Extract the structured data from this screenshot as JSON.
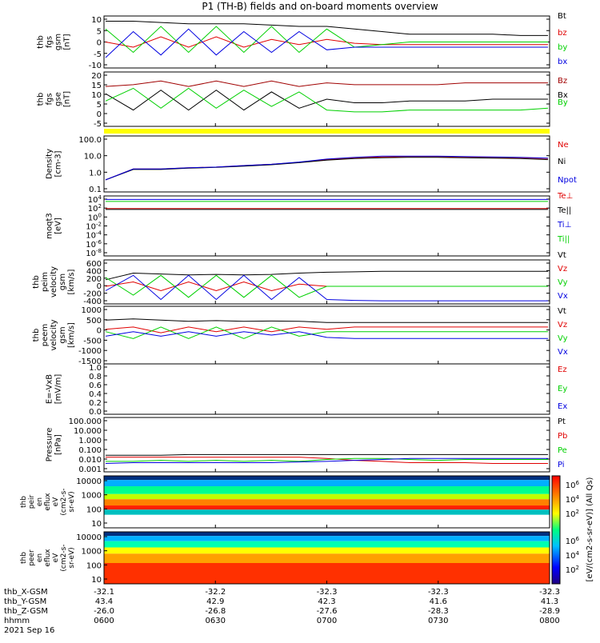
{
  "title": "P1  (TH-B) fields and on-board moments overview",
  "colors": {
    "black": "#000000",
    "red": "#e00000",
    "green": "#00d000",
    "blue": "#0000e0",
    "darkred": "#a00000",
    "yellow": "#ffff00"
  },
  "time_axis": {
    "tick_labels": [
      "0600",
      "0630",
      "0700",
      "0730",
      "0800"
    ],
    "date": "2021 Sep 16",
    "row_labels": [
      "thb_X-GSM",
      "thb_Y-GSM",
      "thb_Z-GSM",
      "hhmm"
    ],
    "rows": [
      [
        "-32.1",
        "-32.2",
        "-32.3",
        "-32.3",
        "-32.3"
      ],
      [
        "43.4",
        "42.9",
        "42.3",
        "41.6",
        "41.3"
      ],
      [
        "-26.0",
        "-26.8",
        "-27.6",
        "-28.3",
        "-28.9"
      ]
    ]
  },
  "colorbar": {
    "label": "[eV/(cm2-s-sr-eV)] (All Qs)",
    "ticks_top": [
      "10^6",
      "10^4",
      "10^2"
    ],
    "ticks_bottom": [
      "10^6",
      "10^4",
      "10^2"
    ]
  },
  "chart_data": [
    {
      "type": "line",
      "panel": "fgs_gsm",
      "ylabel": [
        "thb",
        "fgs",
        "gsm",
        "[nT]"
      ],
      "ylim": [
        -10,
        10
      ],
      "yticks": [
        "10",
        "5",
        "0",
        "-5",
        "-10"
      ],
      "series": [
        {
          "name": "Bt",
          "color": "black",
          "values": [
            8,
            8,
            7.5,
            7,
            7,
            7,
            6.5,
            6,
            6,
            5,
            4,
            3,
            3,
            3,
            3,
            2.5,
            2.5
          ]
        },
        {
          "name": "bz",
          "color": "red",
          "values": [
            0,
            -2,
            2,
            -2,
            2,
            -2,
            1,
            -1,
            1,
            -0.5,
            -1,
            -1,
            -1,
            -1,
            -1,
            -1,
            -1
          ]
        },
        {
          "name": "by",
          "color": "green",
          "values": [
            5,
            -4,
            6,
            -4,
            6,
            -4,
            6,
            -4,
            5,
            -2,
            -1,
            0,
            0,
            0,
            0,
            0,
            0
          ]
        },
        {
          "name": "bx",
          "color": "blue",
          "values": [
            -6,
            4,
            -5,
            5,
            -5,
            4,
            -4,
            4,
            -3,
            -2,
            -2,
            -2,
            -2,
            -2,
            -2,
            -2,
            -2
          ]
        }
      ]
    },
    {
      "type": "line",
      "panel": "fgs_gse",
      "ylabel": [
        "thb",
        "fgs",
        "gse",
        "[nT]"
      ],
      "ylim": [
        -5,
        25
      ],
      "yticks": [
        "20",
        "15",
        "10",
        "5",
        "0",
        "-5"
      ],
      "series": [
        {
          "name": "Bz",
          "color": "darkred",
          "values": [
            17,
            18,
            20,
            17,
            20,
            17,
            20,
            17,
            19,
            18,
            18,
            18,
            18,
            19,
            19,
            19,
            19
          ]
        },
        {
          "name": "Bx",
          "color": "black",
          "values": [
            13,
            4,
            15,
            4,
            15,
            4,
            14,
            5,
            10,
            8,
            8,
            9,
            9,
            9,
            10,
            10,
            10
          ]
        },
        {
          "name": "By",
          "color": "green",
          "values": [
            9,
            16,
            5,
            16,
            5,
            15,
            6,
            14,
            4,
            3,
            3,
            4,
            4,
            4,
            4,
            4,
            5
          ]
        }
      ]
    },
    {
      "type": "line",
      "panel": "density",
      "ylabel": [
        "Density",
        "[cm-3]"
      ],
      "ylog": true,
      "ylim": [
        0.05,
        200
      ],
      "yticks": [
        "100.0",
        "10.0",
        "1.0",
        "0.1"
      ],
      "series": [
        {
          "name": "Ne",
          "color": "red",
          "values": [
            0.3,
            1.5,
            1.5,
            1.8,
            2.0,
            2.5,
            3.0,
            4.0,
            6.0,
            8.0,
            9.0,
            9.5,
            9.5,
            9.0,
            8.5,
            8.0,
            7.0
          ]
        },
        {
          "name": "Ni",
          "color": "black",
          "values": [
            0.3,
            1.4,
            1.4,
            1.7,
            1.9,
            2.3,
            2.8,
            3.8,
            5.5,
            7.0,
            8.0,
            8.5,
            8.5,
            8.0,
            7.5,
            7.0,
            6.0
          ]
        },
        {
          "name": "Npot",
          "color": "blue",
          "values": [
            0.3,
            1.5,
            1.5,
            1.8,
            2.0,
            2.5,
            3.0,
            4.2,
            6.5,
            8.5,
            10.0,
            10.0,
            10.0,
            9.5,
            9.0,
            8.5,
            7.5
          ]
        }
      ]
    },
    {
      "type": "line",
      "panel": "temperature",
      "ylabel": [
        "moqt3",
        "[eV]"
      ],
      "ylog": true,
      "ylim": [
        1e-08,
        10000.0
      ],
      "yticks": [
        "10^4",
        "10^2",
        "10^0",
        "10^-2",
        "10^-4",
        "10^-6",
        "10^-8"
      ],
      "legend_names": [
        "Te⊥",
        "Te||",
        "Ti⊥",
        "Ti||"
      ],
      "series": [
        {
          "name": "Te⊥",
          "color": "red",
          "values": [
            30,
            30,
            30,
            30,
            30,
            30,
            30,
            30,
            30,
            30,
            30,
            30,
            30,
            30,
            30,
            30,
            30
          ]
        },
        {
          "name": "Te||",
          "color": "black",
          "values": [
            20,
            20,
            20,
            20,
            20,
            20,
            20,
            20,
            20,
            20,
            20,
            20,
            20,
            20,
            20,
            20,
            20
          ]
        },
        {
          "name": "Ti⊥",
          "color": "blue",
          "values": [
            2000,
            2000,
            2000,
            2000,
            2000,
            2000,
            2000,
            2000,
            2000,
            2000,
            2000,
            2000,
            2000,
            2000,
            2000,
            2000,
            2000
          ]
        },
        {
          "name": "Ti||",
          "color": "green",
          "values": [
            800,
            800,
            800,
            800,
            800,
            800,
            800,
            800,
            800,
            800,
            800,
            800,
            800,
            800,
            800,
            800,
            800
          ]
        }
      ]
    },
    {
      "type": "line",
      "panel": "ion_velocity",
      "ylabel": [
        "thb",
        "peim",
        "velocity",
        "gsm",
        "[km/s]"
      ],
      "ylim": [
        -400,
        600
      ],
      "yticks": [
        "600",
        "400",
        "200",
        "0",
        "-200",
        "-400"
      ],
      "series": [
        {
          "name": "Vt",
          "color": "black",
          "values": [
            150,
            300,
            280,
            260,
            270,
            260,
            270,
            300,
            320,
            330,
            340,
            340,
            340,
            340,
            340,
            340,
            340
          ]
        },
        {
          "name": "Vz",
          "color": "red",
          "values": [
            0,
            100,
            -100,
            100,
            -100,
            100,
            -100,
            50,
            0,
            0,
            0,
            0,
            0,
            0,
            0,
            0,
            0
          ]
        },
        {
          "name": "Vy",
          "color": "green",
          "values": [
            200,
            -200,
            250,
            -250,
            250,
            -250,
            250,
            -250,
            0,
            0,
            0,
            0,
            0,
            0,
            0,
            0,
            0
          ]
        },
        {
          "name": "Vx",
          "color": "blue",
          "values": [
            -100,
            250,
            -300,
            250,
            -300,
            250,
            -300,
            200,
            -300,
            -320,
            -330,
            -330,
            -330,
            -330,
            -330,
            -330,
            -330
          ]
        }
      ]
    },
    {
      "type": "line",
      "panel": "electron_velocity",
      "ylabel": [
        "thb",
        "peem",
        "velocity",
        "gsm",
        "[km/s]"
      ],
      "ylim": [
        -1500,
        1000
      ],
      "yticks": [
        "1000",
        "500",
        "0",
        "-500",
        "-1000",
        "-1500"
      ],
      "series": [
        {
          "name": "Vt",
          "color": "black",
          "values": [
            400,
            450,
            400,
            350,
            380,
            350,
            360,
            350,
            300,
            300,
            300,
            300,
            300,
            300,
            300,
            300,
            300
          ]
        },
        {
          "name": "Vz",
          "color": "red",
          "values": [
            0,
            100,
            -150,
            100,
            -100,
            100,
            -100,
            100,
            0,
            100,
            100,
            100,
            100,
            100,
            100,
            100,
            100
          ]
        },
        {
          "name": "Vy",
          "color": "green",
          "values": [
            -100,
            -400,
            100,
            -400,
            100,
            -400,
            100,
            -300,
            -100,
            -100,
            -100,
            -100,
            -100,
            -100,
            -100,
            -100,
            -100
          ]
        },
        {
          "name": "Vx",
          "color": "blue",
          "values": [
            -300,
            -100,
            -300,
            -100,
            -300,
            -100,
            -250,
            -100,
            -350,
            -400,
            -400,
            -400,
            -400,
            -400,
            -400,
            -400,
            -400
          ]
        }
      ]
    },
    {
      "type": "line",
      "panel": "efield",
      "ylabel": [
        "E=-VxB",
        "[mV/m]"
      ],
      "ylim": [
        0,
        1
      ],
      "yticks": [
        "1.0",
        "0.8",
        "0.6",
        "0.4",
        "0.2",
        "0.0"
      ],
      "series": [
        {
          "name": "Ez",
          "color": "red",
          "values": []
        },
        {
          "name": "Ey",
          "color": "green",
          "values": []
        },
        {
          "name": "Ex",
          "color": "blue",
          "values": []
        }
      ]
    },
    {
      "type": "line",
      "panel": "pressure",
      "ylabel": [
        "Pressure",
        "[nPa]"
      ],
      "ylog": true,
      "ylim": [
        0.0008,
        120
      ],
      "yticks": [
        "100.000",
        "10.000",
        "1.000",
        "0.100",
        "0.010",
        "0.001"
      ],
      "series": [
        {
          "name": "Pt",
          "color": "black",
          "values": [
            0.03,
            0.03,
            0.03,
            0.035,
            0.035,
            0.035,
            0.035,
            0.035,
            0.035,
            0.035,
            0.035,
            0.035,
            0.035,
            0.035,
            0.035,
            0.035,
            0.035
          ]
        },
        {
          "name": "Pb",
          "color": "red",
          "values": [
            0.02,
            0.02,
            0.02,
            0.02,
            0.02,
            0.02,
            0.02,
            0.02,
            0.015,
            0.01,
            0.008,
            0.006,
            0.006,
            0.006,
            0.005,
            0.005,
            0.005
          ]
        },
        {
          "name": "Pe",
          "color": "green",
          "values": [
            0.008,
            0.008,
            0.01,
            0.008,
            0.01,
            0.008,
            0.01,
            0.008,
            0.012,
            0.015,
            0.015,
            0.012,
            0.01,
            0.012,
            0.012,
            0.012,
            0.012
          ]
        },
        {
          "name": "Pi",
          "color": "blue",
          "values": [
            0.005,
            0.006,
            0.006,
            0.006,
            0.006,
            0.006,
            0.006,
            0.007,
            0.008,
            0.01,
            0.012,
            0.015,
            0.015,
            0.015,
            0.015,
            0.015,
            0.015
          ]
        }
      ]
    },
    {
      "type": "heatmap",
      "panel": "ion_spectrogram",
      "ylabel": [
        "thb",
        "peir",
        "en",
        "eflux",
        "eV",
        "(cm2-s-",
        "sr-eV)"
      ],
      "ylog": true,
      "yticks": [
        "10000",
        "1000",
        "100",
        "10"
      ]
    },
    {
      "type": "heatmap",
      "panel": "electron_spectrogram",
      "ylabel": [
        "thb",
        "peer",
        "en",
        "eflux",
        "eV",
        "(cm2-s-",
        "sr-eV)"
      ],
      "ylog": true,
      "yticks": [
        "10000",
        "1000",
        "100",
        "10"
      ]
    }
  ]
}
